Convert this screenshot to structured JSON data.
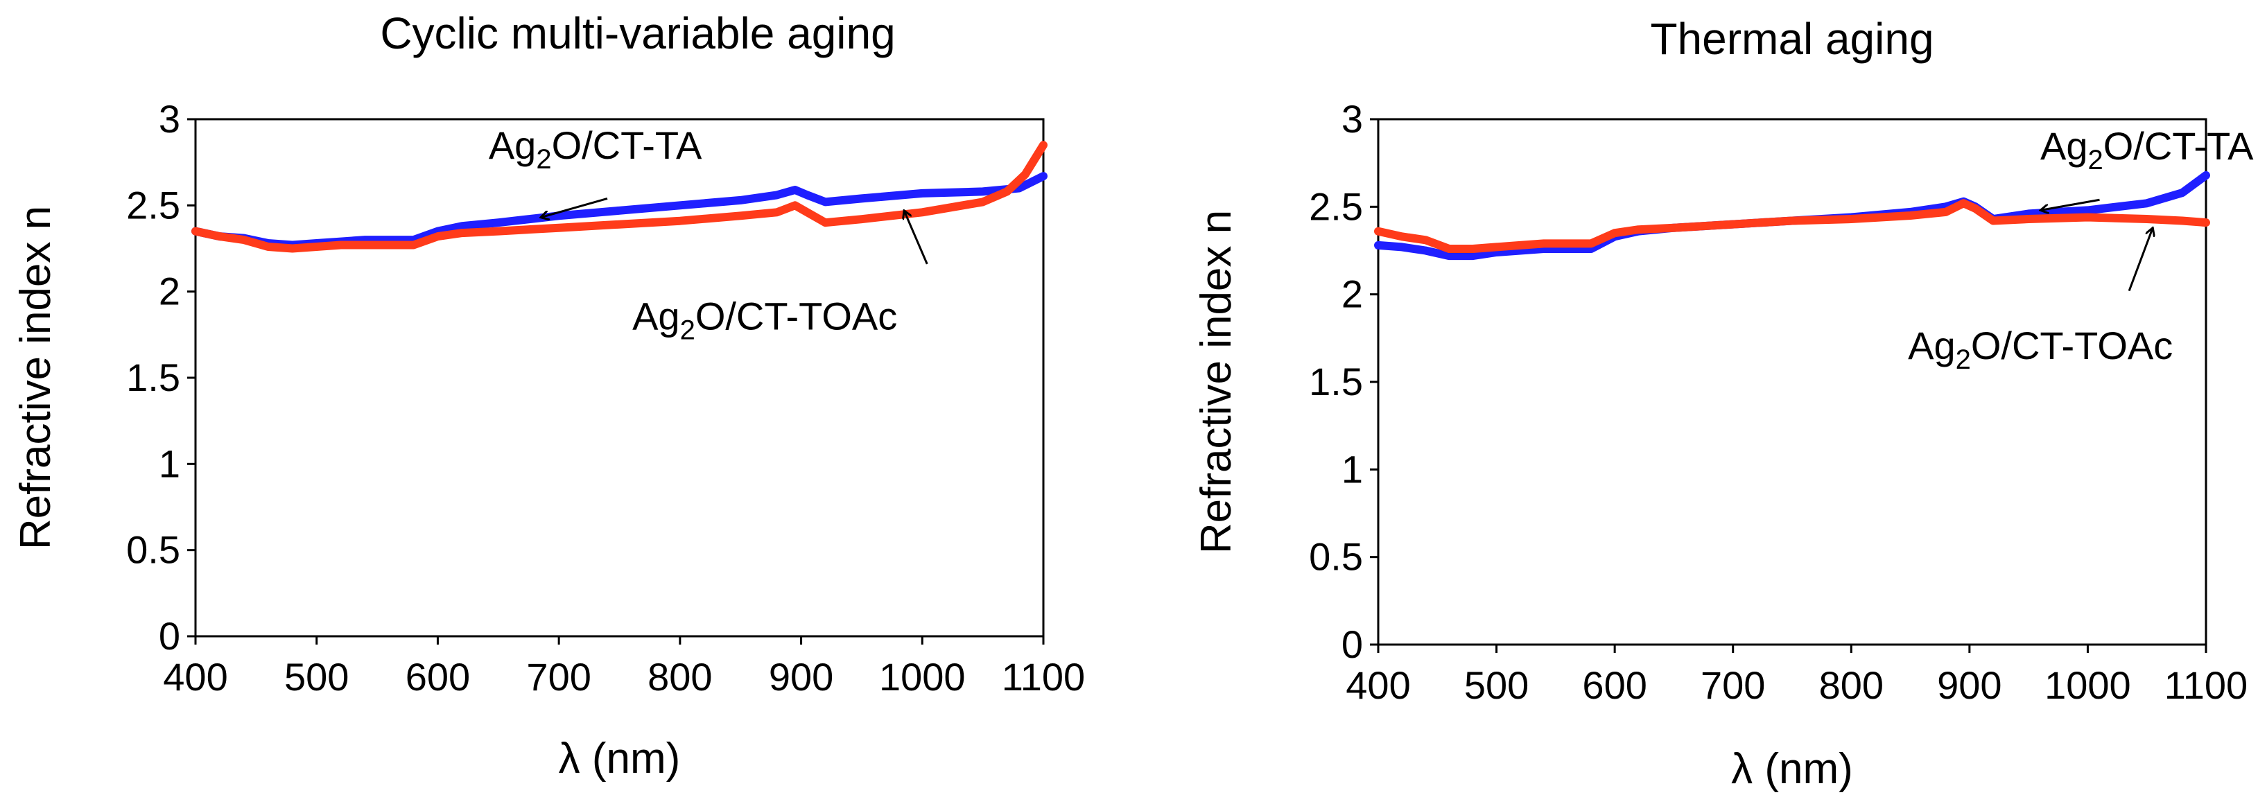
{
  "chart_data": [
    {
      "type": "line",
      "title": "Cyclic multi-variable aging",
      "xlabel": "λ (nm)",
      "ylabel": "Refractive index n",
      "xlim": [
        400,
        1100
      ],
      "ylim": [
        0,
        3
      ],
      "xticks": [
        "400",
        "500",
        "600",
        "700",
        "800",
        "900",
        "1000",
        "1100"
      ],
      "yticks": [
        "0",
        "0.5",
        "1",
        "1.5",
        "2",
        "2.5",
        "3"
      ],
      "series": [
        {
          "name": "Ag2O/CT-TA",
          "color": "#1f1fff",
          "x": [
            400,
            420,
            440,
            460,
            480,
            500,
            520,
            540,
            560,
            580,
            600,
            620,
            650,
            700,
            750,
            800,
            850,
            880,
            895,
            905,
            920,
            950,
            1000,
            1050,
            1080,
            1100
          ],
          "y": [
            2.35,
            2.32,
            2.31,
            2.28,
            2.27,
            2.28,
            2.29,
            2.3,
            2.3,
            2.3,
            2.35,
            2.38,
            2.4,
            2.44,
            2.47,
            2.5,
            2.53,
            2.56,
            2.59,
            2.56,
            2.52,
            2.54,
            2.57,
            2.58,
            2.6,
            2.67
          ]
        },
        {
          "name": "Ag2O/CT-TOAc",
          "color": "#ff3b1a",
          "x": [
            400,
            420,
            440,
            460,
            480,
            500,
            520,
            540,
            560,
            580,
            600,
            620,
            650,
            700,
            750,
            800,
            850,
            880,
            895,
            905,
            920,
            950,
            1000,
            1050,
            1070,
            1085,
            1100
          ],
          "y": [
            2.35,
            2.32,
            2.3,
            2.26,
            2.25,
            2.26,
            2.27,
            2.27,
            2.27,
            2.27,
            2.32,
            2.34,
            2.35,
            2.37,
            2.39,
            2.41,
            2.44,
            2.46,
            2.5,
            2.46,
            2.4,
            2.42,
            2.46,
            2.52,
            2.58,
            2.68,
            2.85
          ]
        }
      ],
      "annotations": [
        {
          "text": "Ag2O/CT-TA",
          "parts": [
            "Ag",
            "2",
            "O/CT-TA"
          ],
          "x": 730,
          "y": 2.77,
          "arrow_to": [
            685,
            2.43
          ],
          "arrow_from": [
            740,
            2.54
          ]
        },
        {
          "text": "Ag2O/CT-TOAc",
          "parts": [
            "Ag",
            "2",
            "O/CT-TOAc"
          ],
          "x": 870,
          "y": 1.78,
          "arrow_to": [
            985,
            2.47
          ],
          "arrow_from": [
            1004,
            2.16
          ]
        }
      ]
    },
    {
      "type": "line",
      "title": "Thermal aging",
      "xlabel": "λ (nm)",
      "ylabel": "Refractive index n",
      "xlim": [
        400,
        1100
      ],
      "ylim": [
        0,
        3
      ],
      "xticks": [
        "400",
        "500",
        "600",
        "700",
        "800",
        "900",
        "1000",
        "1100"
      ],
      "yticks": [
        "0",
        "0.5",
        "1",
        "1.5",
        "2",
        "2.5",
        "3"
      ],
      "series": [
        {
          "name": "Ag2O/CT-TA",
          "color": "#1f1fff",
          "x": [
            400,
            420,
            440,
            460,
            480,
            500,
            520,
            540,
            560,
            580,
            600,
            620,
            650,
            700,
            750,
            800,
            850,
            880,
            895,
            905,
            920,
            950,
            1000,
            1050,
            1080,
            1100
          ],
          "y": [
            2.28,
            2.27,
            2.25,
            2.22,
            2.22,
            2.24,
            2.25,
            2.26,
            2.26,
            2.26,
            2.33,
            2.36,
            2.38,
            2.4,
            2.42,
            2.44,
            2.47,
            2.5,
            2.53,
            2.5,
            2.43,
            2.46,
            2.48,
            2.52,
            2.58,
            2.68
          ]
        },
        {
          "name": "Ag2O/CT-TOAc",
          "color": "#ff3b1a",
          "x": [
            400,
            420,
            440,
            460,
            480,
            500,
            520,
            540,
            560,
            580,
            600,
            620,
            650,
            700,
            750,
            800,
            850,
            880,
            895,
            905,
            920,
            950,
            1000,
            1050,
            1080,
            1100
          ],
          "y": [
            2.36,
            2.33,
            2.31,
            2.26,
            2.26,
            2.27,
            2.28,
            2.29,
            2.29,
            2.29,
            2.35,
            2.37,
            2.38,
            2.4,
            2.42,
            2.43,
            2.45,
            2.47,
            2.52,
            2.49,
            2.42,
            2.43,
            2.44,
            2.43,
            2.42,
            2.41
          ]
        }
      ],
      "annotations": [
        {
          "text": "Ag2O/CT-TA",
          "parts": [
            "Ag",
            "2",
            "O/CT-TA"
          ],
          "x": 1050,
          "y": 2.77,
          "arrow_to": [
            960,
            2.48
          ],
          "arrow_from": [
            1010,
            2.54
          ]
        },
        {
          "text": "Ag2O/CT-TOAc",
          "parts": [
            "Ag",
            "2",
            "O/CT-TOAc"
          ],
          "x": 960,
          "y": 1.63,
          "arrow_to": [
            1055,
            2.38
          ],
          "arrow_from": [
            1035,
            2.02
          ]
        }
      ]
    }
  ]
}
